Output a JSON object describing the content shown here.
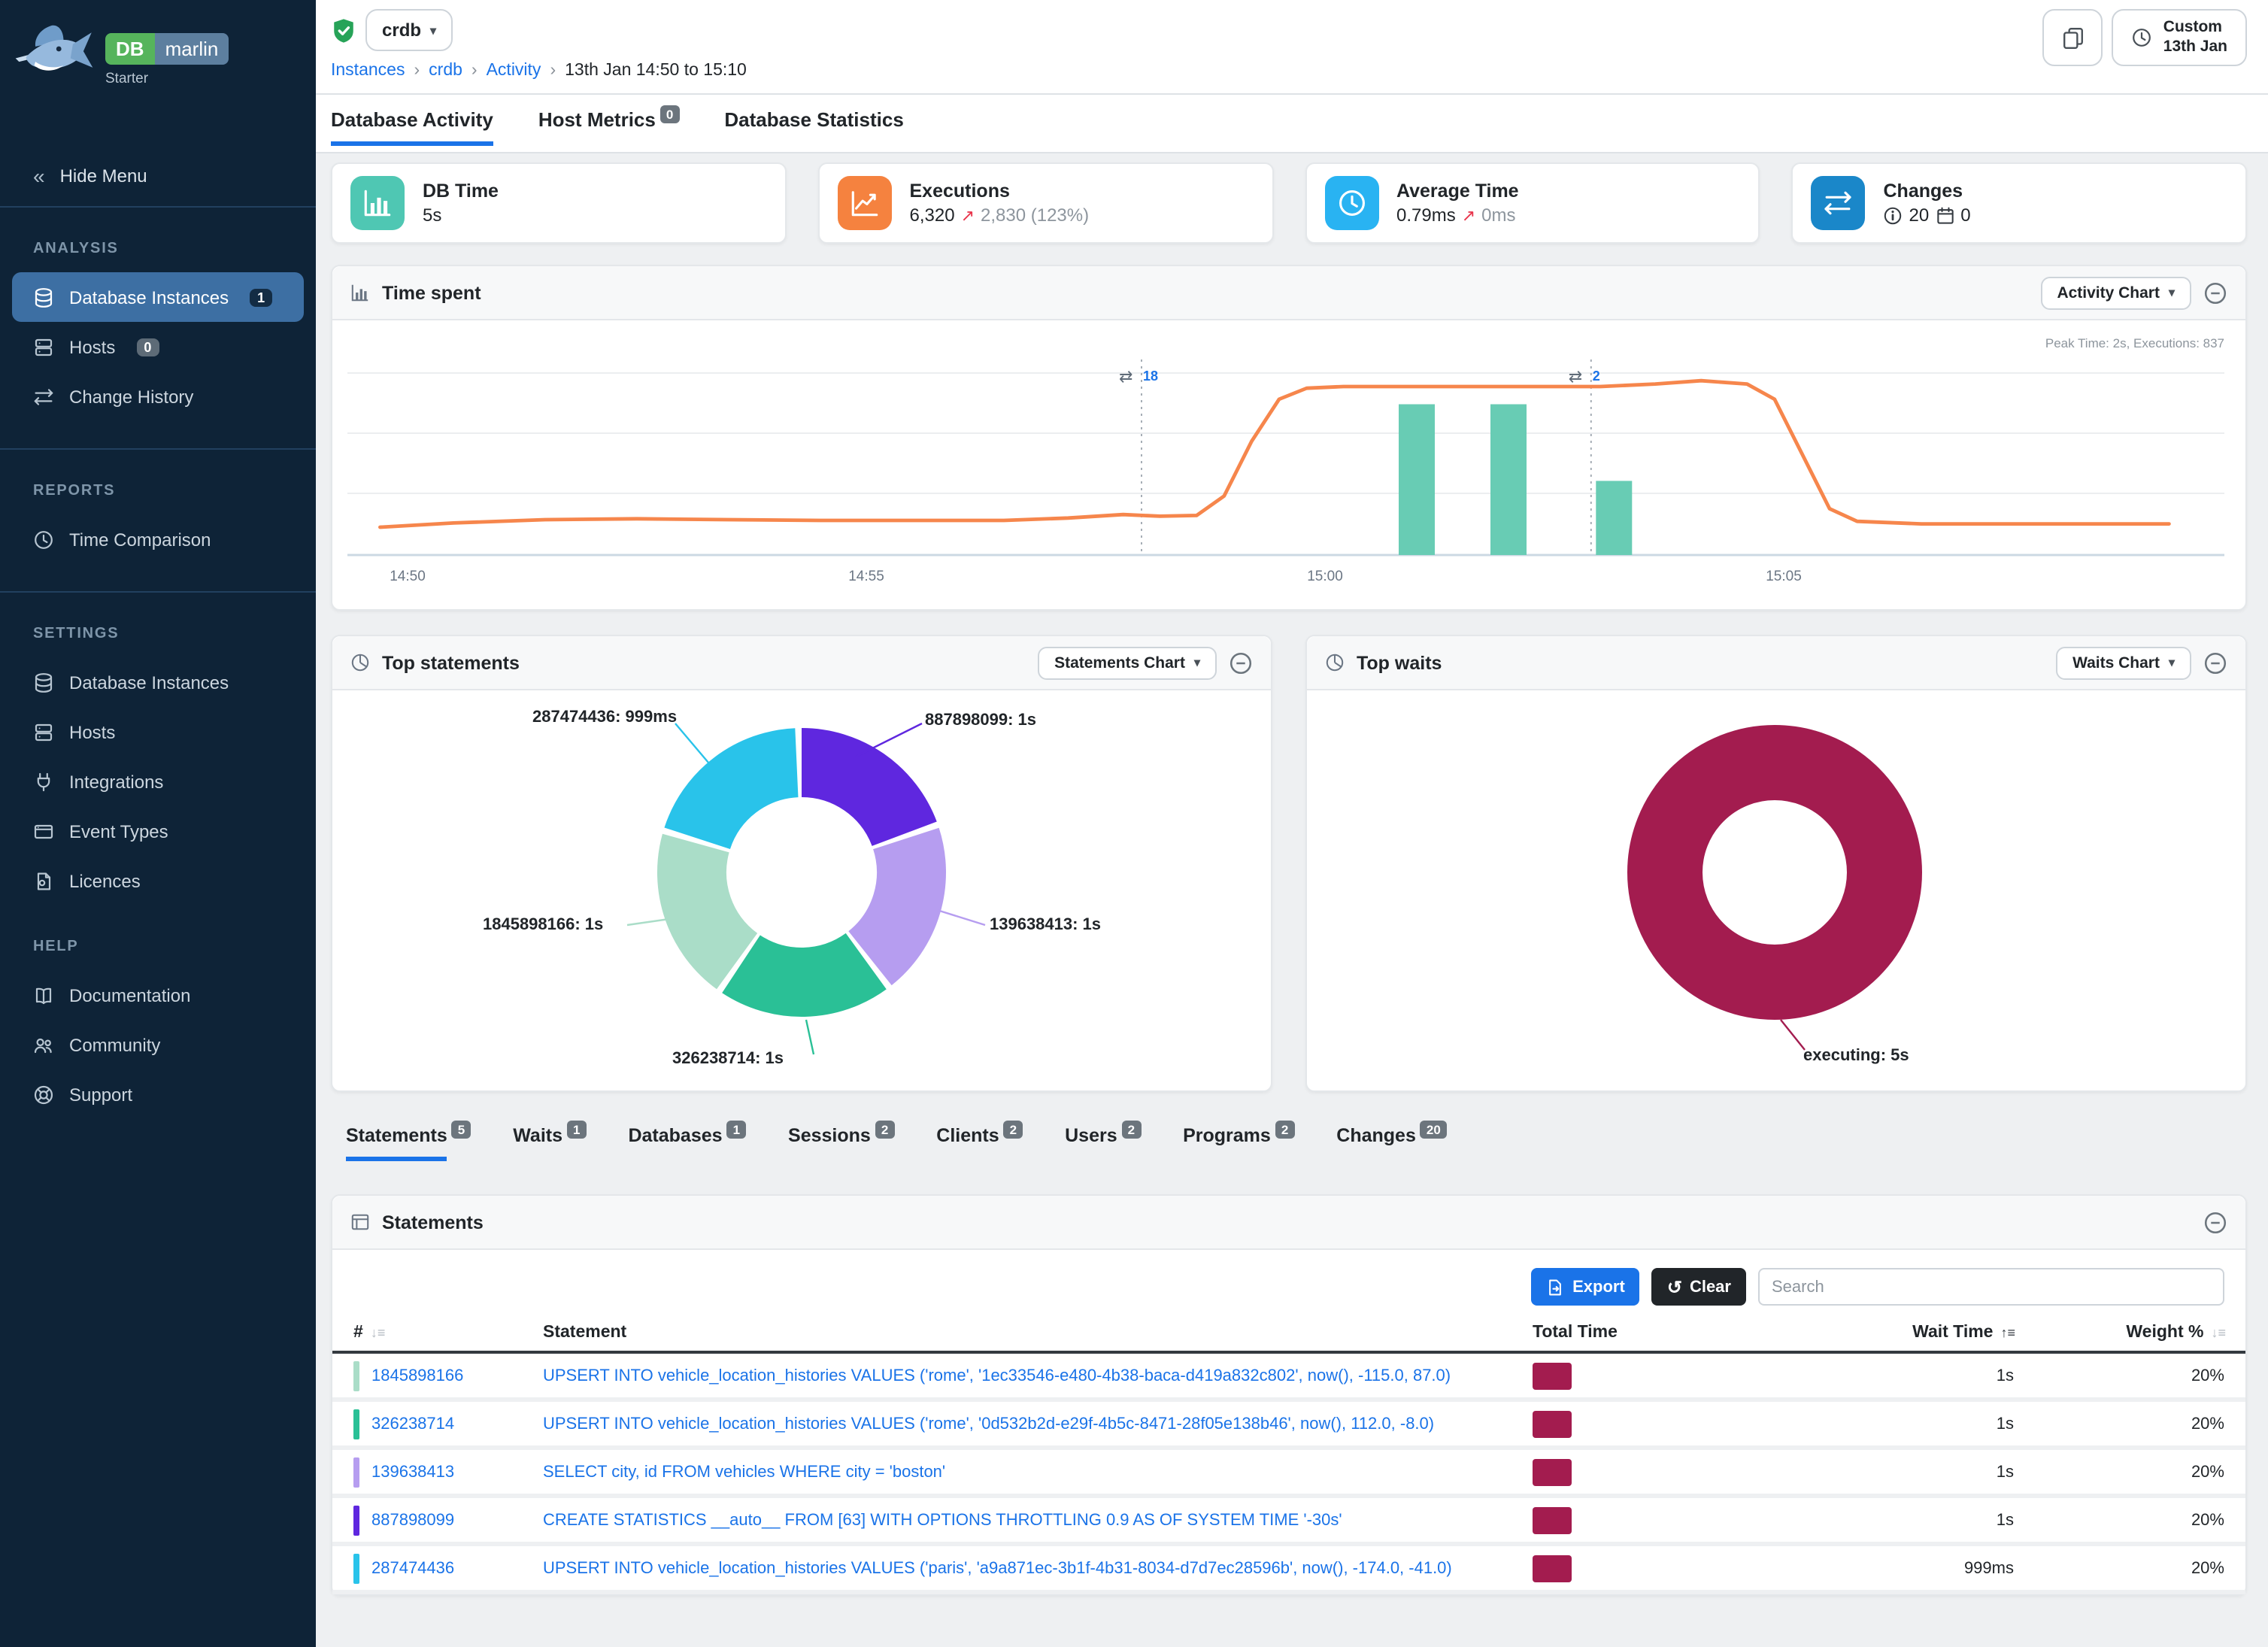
{
  "app": {
    "logo_db": "DB",
    "logo_marlin": "marlin",
    "edition": "Starter"
  },
  "sidebar": {
    "hide_menu": "Hide Menu",
    "sections": [
      {
        "label": "ANALYSIS",
        "divider_after": true,
        "items": [
          {
            "label": "Database Instances",
            "icon": "database",
            "badge": "1",
            "badge_style": "dark",
            "active": true
          },
          {
            "label": "Hosts",
            "icon": "server",
            "badge": "0"
          },
          {
            "label": "Change History",
            "icon": "swap"
          }
        ]
      },
      {
        "label": "REPORTS",
        "divider_after": true,
        "items": [
          {
            "label": "Time Comparison",
            "icon": "clock"
          }
        ]
      },
      {
        "label": "SETTINGS",
        "divider_after": false,
        "items": [
          {
            "label": "Database Instances",
            "icon": "database"
          },
          {
            "label": "Hosts",
            "icon": "server"
          },
          {
            "label": "Integrations",
            "icon": "plug"
          },
          {
            "label": "Event Types",
            "icon": "event"
          },
          {
            "label": "Licences",
            "icon": "licence"
          }
        ]
      },
      {
        "label": "HELP",
        "divider_after": false,
        "items": [
          {
            "label": "Documentation",
            "icon": "docs"
          },
          {
            "label": "Community",
            "icon": "people"
          },
          {
            "label": "Support",
            "icon": "support"
          }
        ]
      }
    ]
  },
  "header": {
    "instance": "crdb",
    "breadcrumb": [
      "Instances",
      "crdb",
      "Activity",
      "13th Jan 14:50 to 15:10"
    ],
    "time_button": {
      "line1": "Custom",
      "line2": "13th Jan"
    }
  },
  "main_tabs": [
    {
      "label": "Database Activity",
      "active": true
    },
    {
      "label": "Host Metrics",
      "badge": "0"
    },
    {
      "label": "Database Statistics"
    }
  ],
  "cards": [
    {
      "kind": "simple",
      "title": "DB Time",
      "value": "5s",
      "icon": "chartbar",
      "color": "#4fc7b3"
    },
    {
      "kind": "delta",
      "title": "Executions",
      "value": "6,320",
      "delta": "2,830 (123%)",
      "icon": "chartline",
      "color": "#f5823f"
    },
    {
      "kind": "delta",
      "title": "Average Time",
      "value": "0.79ms",
      "delta": "0ms",
      "icon": "clock",
      "color": "#29b3f2"
    },
    {
      "kind": "changes",
      "title": "Changes",
      "info_count": "20",
      "event_count": "0",
      "icon": "swap",
      "color": "#1a87c9"
    }
  ],
  "panels": {
    "time_spent": {
      "title": "Time spent",
      "button": "Activity Chart"
    },
    "top_statements": {
      "title": "Top statements",
      "button": "Statements Chart"
    },
    "top_waits": {
      "title": "Top waits",
      "button": "Waits Chart"
    },
    "statements": {
      "title": "Statements",
      "export": "Export",
      "clear": "Clear",
      "search_placeholder": "Search"
    }
  },
  "detail_tabs": [
    {
      "label": "Statements",
      "badge": "5",
      "active": true
    },
    {
      "label": "Waits",
      "badge": "1"
    },
    {
      "label": "Databases",
      "badge": "1"
    },
    {
      "label": "Sessions",
      "badge": "2"
    },
    {
      "label": "Clients",
      "badge": "2"
    },
    {
      "label": "Users",
      "badge": "2"
    },
    {
      "label": "Programs",
      "badge": "2"
    },
    {
      "label": "Changes",
      "badge": "20"
    }
  ],
  "chart_data": [
    {
      "id": "time-spent",
      "type": "line",
      "title": "Time spent",
      "x_ticks": [
        "14:50",
        "14:55",
        "15:00",
        "15:05"
      ],
      "x_range": [
        "14:50",
        "15:10"
      ],
      "y_unit": "seconds",
      "y_max": 2.4,
      "grid": true,
      "legend": "none",
      "note": "Peak Time: 2s, Executions: 837",
      "series": [
        {
          "name": "Time spent",
          "type": "line",
          "color": "#f6864c",
          "x_is_minutes_after": "14:50",
          "points": [
            [
              -0.3,
              0.33
            ],
            [
              0.5,
              0.38
            ],
            [
              1.5,
              0.42
            ],
            [
              2.5,
              0.43
            ],
            [
              3.5,
              0.42
            ],
            [
              4.5,
              0.41
            ],
            [
              5.5,
              0.41
            ],
            [
              6.5,
              0.41
            ],
            [
              7.2,
              0.44
            ],
            [
              7.8,
              0.48
            ],
            [
              8.2,
              0.46
            ],
            [
              8.6,
              0.47
            ],
            [
              8.9,
              0.7
            ],
            [
              9.2,
              1.35
            ],
            [
              9.5,
              1.85
            ],
            [
              9.8,
              1.98
            ],
            [
              10.2,
              2.0
            ],
            [
              11,
              2.0
            ],
            [
              12,
              2.0
            ],
            [
              13,
              2.0
            ],
            [
              13.6,
              2.03
            ],
            [
              14.1,
              2.07
            ],
            [
              14.6,
              2.03
            ],
            [
              14.9,
              1.85
            ],
            [
              15.2,
              1.2
            ],
            [
              15.5,
              0.55
            ],
            [
              15.8,
              0.4
            ],
            [
              16.5,
              0.37
            ],
            [
              17.5,
              0.37
            ],
            [
              18.5,
              0.37
            ],
            [
              19.2,
              0.37
            ]
          ]
        },
        {
          "name": "Executions",
          "type": "bar",
          "color": "#68ccb4",
          "bar_width_minutes": 0.4,
          "points": [
            [
              11,
              1.79
            ],
            [
              12,
              1.79
            ],
            [
              13.15,
              0.88
            ]
          ]
        }
      ],
      "annotations": [
        {
          "type": "change-marker",
          "minute": 8,
          "label": "18"
        },
        {
          "type": "change-marker",
          "minute": 12.9,
          "label": "2"
        }
      ]
    },
    {
      "id": "top-statements",
      "type": "pie",
      "donut": true,
      "title": "Top statements",
      "start_angle": "top",
      "direction": "clockwise",
      "segments": [
        {
          "id": "887898099",
          "label": "887898099: 1s",
          "value_seconds": 1.0,
          "color": "#5f27df"
        },
        {
          "id": "139638413",
          "label": "139638413: 1s",
          "value_seconds": 1.0,
          "color": "#b69df0"
        },
        {
          "id": "326238714",
          "label": "326238714: 1s",
          "value_seconds": 1.0,
          "color": "#2ac096"
        },
        {
          "id": "1845898166",
          "label": "1845898166: 1s",
          "value_seconds": 1.0,
          "color": "#aaddc8"
        },
        {
          "id": "287474436",
          "label": "287474436: 999ms",
          "value_seconds": 0.999,
          "color": "#29c3ea"
        }
      ]
    },
    {
      "id": "top-waits",
      "type": "pie",
      "donut": true,
      "title": "Top waits",
      "segments": [
        {
          "id": "executing",
          "label": "executing: 5s",
          "value_seconds": 5.0,
          "color": "#a31c4f"
        }
      ]
    }
  ],
  "statements_table": {
    "columns": [
      "#",
      "Statement",
      "Total Time",
      "Wait Time",
      "Weight %"
    ],
    "total_time_color": "#a31c4f",
    "rows": [
      {
        "id": "1845898166",
        "color": "#aaddc8",
        "statement": "UPSERT INTO vehicle_location_histories VALUES ('rome', '1ec33546-e480-4b38-baca-d419a832c802', now(), -115.0, 87.0)",
        "wait_time": "1s",
        "weight": "20%"
      },
      {
        "id": "326238714",
        "color": "#2ac096",
        "statement": "UPSERT INTO vehicle_location_histories VALUES ('rome', '0d532b2d-e29f-4b5c-8471-28f05e138b46', now(), 112.0, -8.0)",
        "wait_time": "1s",
        "weight": "20%"
      },
      {
        "id": "139638413",
        "color": "#b69df0",
        "statement": "SELECT city, id FROM vehicles WHERE city = 'boston'",
        "wait_time": "1s",
        "weight": "20%"
      },
      {
        "id": "887898099",
        "color": "#5f27df",
        "statement": "CREATE STATISTICS __auto__ FROM [63] WITH OPTIONS THROTTLING 0.9 AS OF SYSTEM TIME '-30s'",
        "wait_time": "1s",
        "weight": "20%"
      },
      {
        "id": "287474436",
        "color": "#29c3ea",
        "statement": "UPSERT INTO vehicle_location_histories VALUES ('paris', 'a9a871ec-3b1f-4b31-8034-d7d7ec28596b', now(), -174.0, -41.0)",
        "wait_time": "999ms",
        "weight": "20%"
      }
    ]
  }
}
